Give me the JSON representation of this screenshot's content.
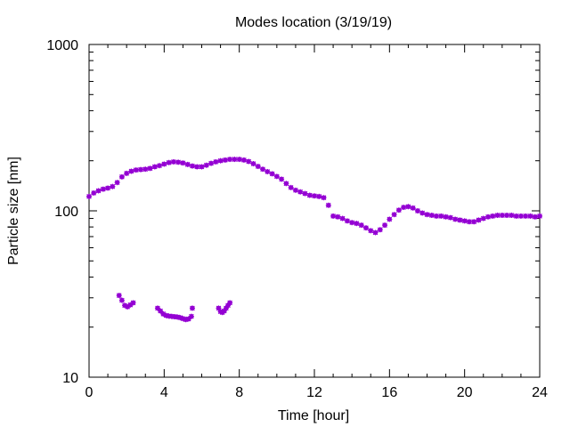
{
  "chart_data": {
    "type": "scatter",
    "title": "Modes location (3/19/19)",
    "xlabel": "Time [hour]",
    "ylabel": "Particle size [nm]",
    "xlim": [
      0,
      24
    ],
    "ylim": [
      10,
      1000
    ],
    "yscale": "log",
    "xticks": [
      0,
      4,
      8,
      12,
      16,
      20,
      24
    ],
    "yticks": [
      10,
      100,
      1000
    ],
    "grid": false,
    "marker_color": "#9400D3",
    "series": [
      {
        "points": [
          [
            0.0,
            122
          ],
          [
            0.25,
            128
          ],
          [
            0.5,
            132
          ],
          [
            0.75,
            135
          ],
          [
            1.0,
            137
          ],
          [
            1.25,
            140
          ],
          [
            1.5,
            148
          ],
          [
            1.75,
            160
          ],
          [
            2.0,
            168
          ],
          [
            2.25,
            173
          ],
          [
            2.5,
            176
          ],
          [
            2.75,
            177
          ],
          [
            3.0,
            178
          ],
          [
            3.25,
            180
          ],
          [
            3.5,
            184
          ],
          [
            3.75,
            187
          ],
          [
            4.0,
            191
          ],
          [
            4.25,
            195
          ],
          [
            4.5,
            197
          ],
          [
            4.75,
            196
          ],
          [
            5.0,
            194
          ],
          [
            5.25,
            190
          ],
          [
            5.5,
            186
          ],
          [
            5.75,
            184
          ],
          [
            6.0,
            184
          ],
          [
            6.25,
            188
          ],
          [
            6.5,
            193
          ],
          [
            6.75,
            197
          ],
          [
            7.0,
            200
          ],
          [
            7.25,
            202
          ],
          [
            7.5,
            204
          ],
          [
            7.75,
            204
          ],
          [
            8.0,
            204
          ],
          [
            8.25,
            202
          ],
          [
            8.5,
            198
          ],
          [
            8.75,
            192
          ],
          [
            9.0,
            185
          ],
          [
            9.25,
            178
          ],
          [
            9.5,
            172
          ],
          [
            9.75,
            167
          ],
          [
            10.0,
            161
          ],
          [
            10.25,
            155
          ],
          [
            10.5,
            146
          ],
          [
            10.75,
            138
          ],
          [
            11.0,
            133
          ],
          [
            11.25,
            130
          ],
          [
            11.5,
            127
          ],
          [
            11.75,
            124
          ],
          [
            12.0,
            123
          ],
          [
            12.25,
            122
          ],
          [
            12.5,
            120
          ],
          [
            12.75,
            108
          ],
          [
            13.0,
            93
          ],
          [
            13.25,
            92
          ],
          [
            13.5,
            90
          ],
          [
            13.75,
            87
          ],
          [
            14.0,
            85
          ],
          [
            14.25,
            84
          ],
          [
            14.5,
            82
          ],
          [
            14.75,
            79
          ],
          [
            15.0,
            76
          ],
          [
            15.25,
            74
          ],
          [
            15.5,
            77
          ],
          [
            15.75,
            82
          ],
          [
            16.0,
            89
          ],
          [
            16.25,
            95
          ],
          [
            16.5,
            101
          ],
          [
            16.75,
            105
          ],
          [
            17.0,
            106
          ],
          [
            17.25,
            104
          ],
          [
            17.5,
            100
          ],
          [
            17.75,
            97
          ],
          [
            18.0,
            95
          ],
          [
            18.25,
            94
          ],
          [
            18.5,
            93
          ],
          [
            18.75,
            93
          ],
          [
            19.0,
            92
          ],
          [
            19.25,
            91
          ],
          [
            19.5,
            89
          ],
          [
            19.75,
            88
          ],
          [
            20.0,
            87
          ],
          [
            20.25,
            86
          ],
          [
            20.5,
            86
          ],
          [
            20.75,
            88
          ],
          [
            21.0,
            90
          ],
          [
            21.25,
            92
          ],
          [
            21.5,
            93
          ],
          [
            21.75,
            94
          ],
          [
            22.0,
            94
          ],
          [
            22.25,
            94
          ],
          [
            22.5,
            94
          ],
          [
            22.75,
            93
          ],
          [
            23.0,
            93
          ],
          [
            23.25,
            93
          ],
          [
            23.5,
            93
          ],
          [
            23.75,
            92
          ],
          [
            24.0,
            93
          ]
        ]
      },
      {
        "points": [
          [
            1.6,
            31
          ],
          [
            1.75,
            29
          ],
          [
            1.9,
            27
          ],
          [
            2.05,
            26.5
          ],
          [
            2.2,
            27.2
          ],
          [
            2.35,
            28
          ],
          [
            3.65,
            26
          ],
          [
            3.8,
            25
          ],
          [
            3.95,
            24
          ],
          [
            4.1,
            23.5
          ],
          [
            4.25,
            23.3
          ],
          [
            4.4,
            23.2
          ],
          [
            4.55,
            23.1
          ],
          [
            4.7,
            23
          ],
          [
            4.85,
            22.8
          ],
          [
            5.0,
            22.5
          ],
          [
            5.15,
            22.2
          ],
          [
            5.3,
            22.4
          ],
          [
            5.45,
            23.2
          ],
          [
            5.5,
            26
          ],
          [
            6.9,
            26
          ],
          [
            7.0,
            24.8
          ],
          [
            7.1,
            24.5
          ],
          [
            7.2,
            25
          ],
          [
            7.3,
            26
          ],
          [
            7.4,
            27
          ],
          [
            7.5,
            28
          ]
        ]
      }
    ]
  }
}
